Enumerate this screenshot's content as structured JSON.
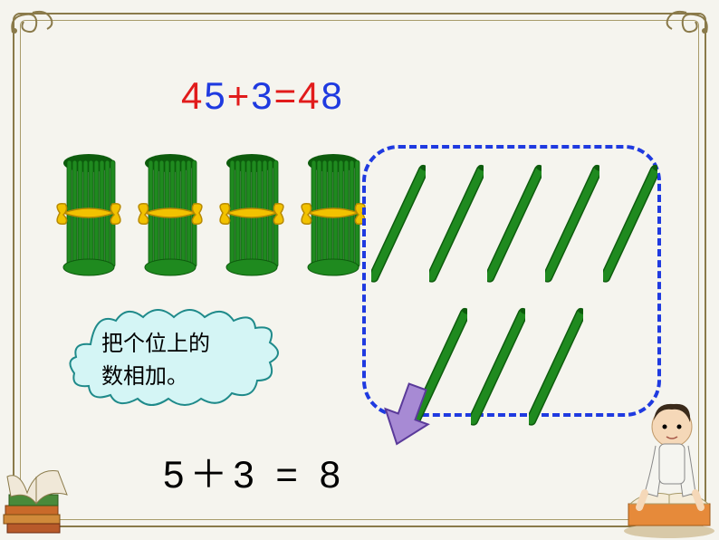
{
  "frame": {
    "outer_color": "#8a7a4a",
    "inner_color": "#a89b6a",
    "background": "#f5f4ee"
  },
  "equation1": {
    "parts": [
      {
        "text": "4",
        "color": "#e11b1b"
      },
      {
        "text": "5",
        "color": "#1f3ae0"
      },
      {
        "text": " + ",
        "color": "#e11b1b"
      },
      {
        "text": "3",
        "color": "#1f3ae0"
      },
      {
        "text": " = ",
        "color": "#e11b1b"
      },
      {
        "text": "4",
        "color": "#e11b1b"
      },
      {
        "text": "8",
        "color": "#1f3ae0"
      }
    ],
    "fontsize": 42
  },
  "bundles": {
    "count": 4,
    "stick_color": "#1f8a1f",
    "stick_dark": "#0d5c0d",
    "tie_color": "#f2c200",
    "tie_dark": "#b88a00"
  },
  "loose_sticks": {
    "top_row_count": 5,
    "bottom_row_count": 3,
    "stick_color": "#1f8a1f",
    "stick_dark": "#0d5c0d",
    "angle_deg": 25
  },
  "dashed_box": {
    "border_color": "#1f3ae0",
    "border_width": 4,
    "radius": 40
  },
  "bubble": {
    "fill": "#d4f5f5",
    "stroke": "#1f8a8a",
    "text_line1": "把个位上的",
    "text_line2": "数相加。",
    "fontsize": 24
  },
  "arrow": {
    "fill": "#a78ad4",
    "stroke": "#5a3a9a"
  },
  "equation2": {
    "text": "5＋3 = 8",
    "color": "#000000",
    "fontsize": 42
  }
}
